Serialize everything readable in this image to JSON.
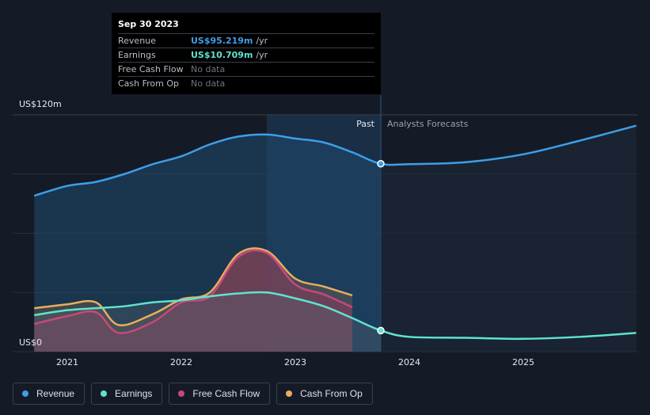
{
  "tooltip": {
    "date": "Sep 30 2023",
    "rows": [
      {
        "label": "Revenue",
        "value": "US$95.219m",
        "unit": "/yr",
        "color": "#3e9ee8"
      },
      {
        "label": "Earnings",
        "value": "US$10.709m",
        "unit": "/yr",
        "color": "#5fe3d0"
      },
      {
        "label": "Free Cash Flow",
        "value": "No data"
      },
      {
        "label": "Cash From Op",
        "value": "No data"
      }
    ]
  },
  "chart_data": {
    "type": "line",
    "y_axis_labels": {
      "top": "US$120m",
      "bottom": "US$0"
    },
    "ylim": [
      0,
      120
    ],
    "xlim": [
      2020.71,
      2025.99
    ],
    "x_ticks": [
      "2021",
      "2022",
      "2023",
      "2024",
      "2025"
    ],
    "past_label": "Past",
    "forecast_label": "Analysts Forecasts",
    "divider_x": 2023.75,
    "highlight_start_x": 2022.75,
    "grid": true,
    "legend_placement": "bottom-left",
    "series": [
      {
        "name": "Revenue",
        "color": "#3e9ee8",
        "x": [
          2020.71,
          2021.0,
          2021.25,
          2021.5,
          2021.75,
          2022.0,
          2022.25,
          2022.5,
          2022.75,
          2023.0,
          2023.25,
          2023.5,
          2023.75,
          2024.0,
          2024.5,
          2025.0,
          2025.5,
          2025.99
        ],
        "values": [
          79,
          84,
          86,
          90,
          95,
          99,
          105,
          109,
          110,
          108,
          106,
          101,
          95.2,
          95,
          96,
          100,
          107,
          114.5
        ]
      },
      {
        "name": "Earnings",
        "color": "#5fe3d0",
        "x": [
          2020.71,
          2021.0,
          2021.25,
          2021.5,
          2021.75,
          2022.0,
          2022.25,
          2022.5,
          2022.75,
          2023.0,
          2023.25,
          2023.5,
          2023.75,
          2024.0,
          2024.5,
          2025.0,
          2025.5,
          2025.99
        ],
        "values": [
          18.5,
          21,
          22,
          23,
          25,
          26,
          28,
          29.5,
          30,
          27,
          23,
          17,
          10.7,
          7.5,
          7,
          6.5,
          7.5,
          9.5
        ]
      },
      {
        "name": "Free Cash Flow",
        "color": "#c8487d",
        "x": [
          2020.71,
          2021.0,
          2021.25,
          2021.45,
          2021.75,
          2022.0,
          2022.25,
          2022.5,
          2022.75,
          2023.0,
          2023.25,
          2023.5
        ],
        "values": [
          14,
          18,
          20,
          9.5,
          15,
          25,
          28,
          48,
          50,
          34,
          29,
          22.5
        ]
      },
      {
        "name": "Cash From Op",
        "color": "#e8ad5f",
        "x": [
          2020.71,
          2021.0,
          2021.25,
          2021.45,
          2021.75,
          2022.0,
          2022.25,
          2022.5,
          2022.75,
          2023.0,
          2023.25,
          2023.5
        ],
        "values": [
          22,
          24,
          25,
          13.5,
          19,
          26.5,
          30,
          49.5,
          51,
          37,
          33,
          28.5
        ]
      }
    ]
  }
}
